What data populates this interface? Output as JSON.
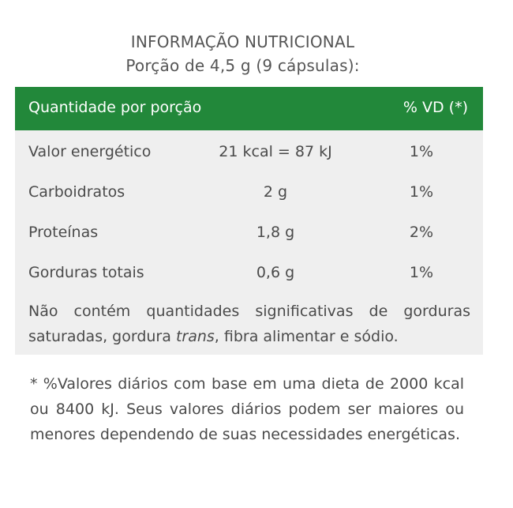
{
  "header": {
    "title": "INFORMAÇÃO NUTRICIONAL",
    "subtitle": "Porção de 4,5 g (9 cápsulas):"
  },
  "table": {
    "header_label": "Quantidade por porção",
    "header_vd": "% VD (*)",
    "rows": [
      {
        "name": "Valor energético",
        "amount": "21 kcal = 87 kJ",
        "vd": "1%"
      },
      {
        "name": "Carboidratos",
        "amount": "2 g",
        "vd": "1%"
      },
      {
        "name": "Proteínas",
        "amount": "1,8 g",
        "vd": "2%"
      },
      {
        "name": "Gorduras totais",
        "amount": "0,6 g",
        "vd": "1%"
      }
    ],
    "note_before": "Não contém quantidades significativas de gorduras saturadas, gordura ",
    "note_italic": "trans",
    "note_after": ", fibra alimentar e sódio."
  },
  "footnote": "* %Valores diários com base em uma dieta de 2000 kcal ou 8400 kJ. Seus valores diários podem ser maiores ou menores dependendo de suas necessidades energéticas.",
  "colors": {
    "header_green": "#22883a",
    "panel_gray": "#efefef",
    "text": "#4a4a4a"
  }
}
